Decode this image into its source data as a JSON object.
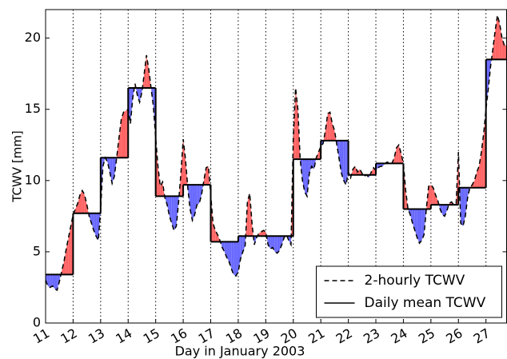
{
  "chart_data": {
    "type": "line",
    "xlabel": "Day in January 2003",
    "ylabel": "TCWV [mm]",
    "xlim": [
      11,
      27.75
    ],
    "ylim": [
      0,
      22
    ],
    "xticks": [
      11,
      12,
      13,
      14,
      15,
      16,
      17,
      18,
      19,
      20,
      21,
      22,
      23,
      24,
      25,
      26,
      27
    ],
    "yticks": [
      0,
      5,
      10,
      15,
      20
    ],
    "xgrid": true,
    "legend": "lower right",
    "fill_above_color": "#ff6464",
    "fill_below_color": "#6a6aff",
    "series": [
      {
        "name": "2-hourly TCWV",
        "color": "#000000",
        "style": "dashed",
        "x": [
          11,
          11.083,
          11.167,
          11.25,
          11.333,
          11.417,
          11.5,
          11.583,
          11.667,
          11.75,
          11.833,
          11.917,
          12,
          12.083,
          12.167,
          12.25,
          12.333,
          12.417,
          12.5,
          12.583,
          12.667,
          12.75,
          12.833,
          12.917,
          13,
          13.083,
          13.167,
          13.25,
          13.333,
          13.417,
          13.5,
          13.583,
          13.667,
          13.75,
          13.833,
          13.917,
          14,
          14.083,
          14.167,
          14.25,
          14.333,
          14.417,
          14.5,
          14.583,
          14.667,
          14.75,
          14.833,
          14.917,
          15,
          15.083,
          15.167,
          15.25,
          15.333,
          15.417,
          15.5,
          15.583,
          15.667,
          15.75,
          15.833,
          15.917,
          16,
          16.083,
          16.167,
          16.25,
          16.333,
          16.417,
          16.5,
          16.583,
          16.667,
          16.75,
          16.833,
          16.917,
          17,
          17.083,
          17.167,
          17.25,
          17.333,
          17.417,
          17.5,
          17.583,
          17.667,
          17.75,
          17.833,
          17.917,
          18,
          18.083,
          18.167,
          18.25,
          18.333,
          18.417,
          18.5,
          18.583,
          18.667,
          18.75,
          18.833,
          18.917,
          19,
          19.083,
          19.167,
          19.25,
          19.333,
          19.417,
          19.5,
          19.583,
          19.667,
          19.75,
          19.833,
          19.917,
          20,
          20.083,
          20.167,
          20.25,
          20.333,
          20.417,
          20.5,
          20.583,
          20.667,
          20.75,
          20.833,
          20.917,
          21,
          21.083,
          21.167,
          21.25,
          21.333,
          21.417,
          21.5,
          21.583,
          21.667,
          21.75,
          21.833,
          21.917,
          22,
          22.083,
          22.167,
          22.25,
          22.333,
          22.417,
          22.5,
          22.583,
          22.667,
          22.75,
          22.833,
          22.917,
          23,
          23.083,
          23.167,
          23.25,
          23.333,
          23.417,
          23.5,
          23.583,
          23.667,
          23.75,
          23.833,
          23.917,
          24,
          24.083,
          24.167,
          24.25,
          24.333,
          24.417,
          24.5,
          24.583,
          24.667,
          24.75,
          24.833,
          24.917,
          25,
          25.083,
          25.167,
          25.25,
          25.333,
          25.417,
          25.5,
          25.583,
          25.667,
          25.75,
          25.833,
          25.917,
          26,
          26.083,
          26.167,
          26.25,
          26.333,
          26.417,
          26.5,
          26.583,
          26.667,
          26.75,
          26.833,
          26.917,
          27,
          27.083,
          27.167,
          27.25,
          27.333,
          27.417,
          27.5,
          27.583,
          27.667,
          27.75
        ],
        "values": [
          3.0,
          2.6,
          2.5,
          2.6,
          2.4,
          2.3,
          2.9,
          3.6,
          4.3,
          5.2,
          6.0,
          6.8,
          7.6,
          8.0,
          8.4,
          9.0,
          9.3,
          9.0,
          8.3,
          7.5,
          7.0,
          6.5,
          6.1,
          5.8,
          8.0,
          11.0,
          11.6,
          11.3,
          10.6,
          9.8,
          10.3,
          11.6,
          13.0,
          14.3,
          14.8,
          14.9,
          15.0,
          14.0,
          15.8,
          16.8,
          16.0,
          15.5,
          16.2,
          17.5,
          18.8,
          17.8,
          16.5,
          15.2,
          13.0,
          11.0,
          9.6,
          9.9,
          8.8,
          8.3,
          7.5,
          7.0,
          6.5,
          6.8,
          8.5,
          10.5,
          12.9,
          11.5,
          9.5,
          8.0,
          7.2,
          7.6,
          8.3,
          8.4,
          9.0,
          10.0,
          10.9,
          11.0,
          9.0,
          7.0,
          6.5,
          6.2,
          5.8,
          5.3,
          5.0,
          4.6,
          4.3,
          3.8,
          3.4,
          3.3,
          3.6,
          4.5,
          5.0,
          5.4,
          8.5,
          9.1,
          7.0,
          5.5,
          6.0,
          6.3,
          6.4,
          6.5,
          6.4,
          5.5,
          5.2,
          5.3,
          5.0,
          4.9,
          5.1,
          5.5,
          6.0,
          6.2,
          5.8,
          5.5,
          13.0,
          16.5,
          15.0,
          11.5,
          10.0,
          9.2,
          8.9,
          10.5,
          11.0,
          10.8,
          11.6,
          12.0,
          12.4,
          12.6,
          13.5,
          14.7,
          14.8,
          14.0,
          13.5,
          12.5,
          11.5,
          10.5,
          10.0,
          9.7,
          10.6,
          10.2,
          10.8,
          11.0,
          10.6,
          10.8,
          10.5,
          10.3,
          10.4,
          10.2,
          10.6,
          10.9,
          10.7,
          10.9,
          11.0,
          11.0,
          11.2,
          11.3,
          11.2,
          11.2,
          11.6,
          12.3,
          12.5,
          11.9,
          11.2,
          9.3,
          8.0,
          7.6,
          7.0,
          6.5,
          6.0,
          5.6,
          5.8,
          6.2,
          8.0,
          9.6,
          9.7,
          9.5,
          9.0,
          8.6,
          8.0,
          7.6,
          7.5,
          7.9,
          8.4,
          8.5,
          8.3,
          8.4,
          12.0,
          7.0,
          6.8,
          7.5,
          8.8,
          9.5,
          9.7,
          10.0,
          10.6,
          11.0,
          12.0,
          13.3,
          15.0,
          16.4,
          18.0,
          19.2,
          20.5,
          21.6,
          21.0,
          20.0,
          19.5,
          19.5
        ]
      },
      {
        "name": "Daily mean TCWV",
        "color": "#000000",
        "style": "step",
        "x": [
          11,
          12,
          13,
          14,
          15,
          16,
          17,
          18,
          19,
          20,
          21,
          22,
          23,
          24,
          25,
          26,
          27
        ],
        "values": [
          3.4,
          7.7,
          11.6,
          16.5,
          8.9,
          9.7,
          5.7,
          6.1,
          6.1,
          11.5,
          12.8,
          10.4,
          11.2,
          8.0,
          8.3,
          9.5,
          18.5
        ]
      }
    ]
  }
}
